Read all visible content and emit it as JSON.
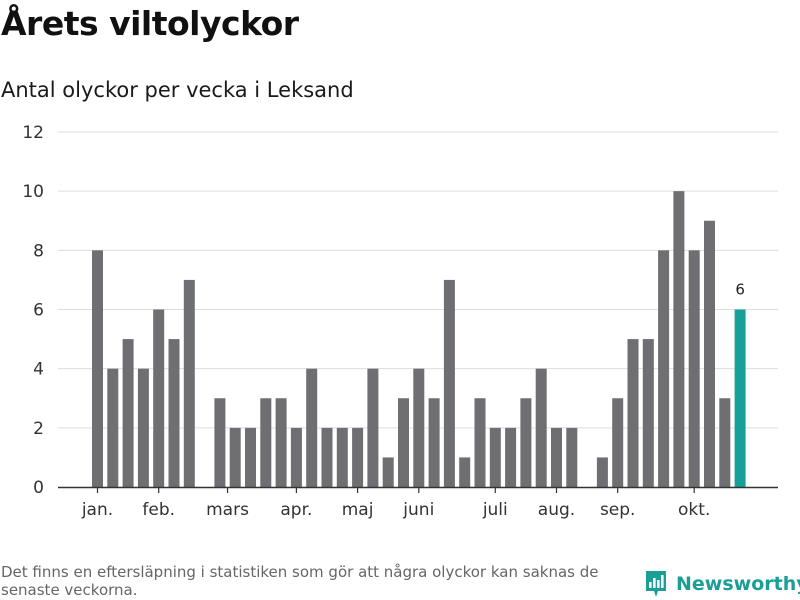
{
  "header": {
    "title": "Årets viltolyckor",
    "subtitle": "Antal olyckor per vecka i Leksand"
  },
  "footer": {
    "note": "Det finns en eftersläpning i statistiken som gör att några olyckor kan saknas de senaste veckorna.",
    "brand": "Newsworthy"
  },
  "colors": {
    "bar": "#6f6e73",
    "highlight": "#17a097",
    "grid": "#dddddd",
    "axis": "#333333",
    "brand": "#1a9e96"
  },
  "chart_data": {
    "type": "bar",
    "title": "",
    "xlabel": "",
    "ylabel": "",
    "ylim": [
      0,
      12
    ],
    "yticks": [
      0,
      2,
      4,
      6,
      8,
      10,
      12
    ],
    "grid": true,
    "weeks": [
      1,
      2,
      3,
      4,
      5,
      6,
      7,
      8,
      9,
      10,
      11,
      12,
      13,
      14,
      15,
      16,
      17,
      18,
      19,
      20,
      21,
      22,
      23,
      24,
      25,
      26,
      27,
      28,
      29,
      30,
      31,
      32,
      33,
      34,
      35,
      36,
      37,
      38,
      39,
      40,
      41,
      42,
      43
    ],
    "values": [
      8,
      4,
      5,
      4,
      6,
      5,
      7,
      0,
      3,
      2,
      2,
      3,
      3,
      2,
      4,
      2,
      2,
      2,
      4,
      1,
      3,
      4,
      3,
      7,
      1,
      3,
      2,
      2,
      3,
      4,
      2,
      2,
      0,
      1,
      3,
      5,
      5,
      8,
      10,
      8,
      9,
      3,
      6
    ],
    "month_labels": [
      {
        "label": "jan.",
        "week": 1
      },
      {
        "label": "feb.",
        "week": 5
      },
      {
        "label": "mars",
        "week": 9.5
      },
      {
        "label": "apr.",
        "week": 14
      },
      {
        "label": "maj",
        "week": 18
      },
      {
        "label": "juni",
        "week": 22
      },
      {
        "label": "juli",
        "week": 27
      },
      {
        "label": "aug.",
        "week": 31
      },
      {
        "label": "sep.",
        "week": 35
      },
      {
        "label": "okt.",
        "week": 40
      }
    ],
    "highlight_week": 43,
    "highlight_label": "6"
  }
}
